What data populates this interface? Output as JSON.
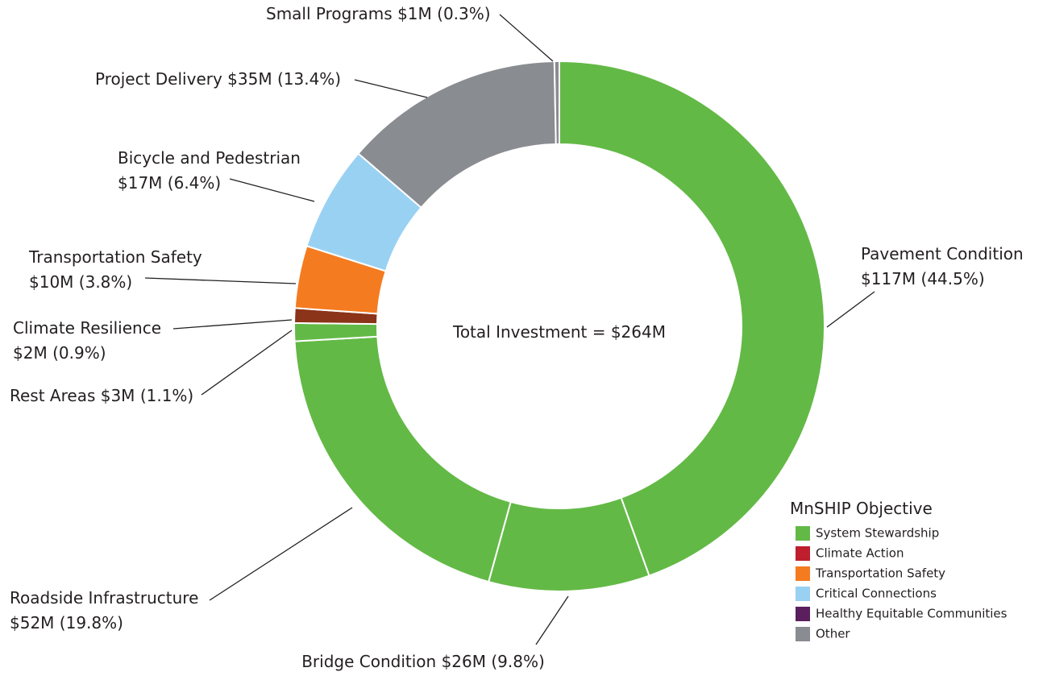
{
  "chart_data": {
    "type": "donut",
    "categories": [
      "Pavement Condition",
      "Bridge Condition",
      "Roadside Infrastructure",
      "Rest Areas",
      "Climate Resilience",
      "Transportation Safety",
      "Bicycle and Pedestrian",
      "Project Delivery",
      "Small Programs"
    ],
    "values": [
      117,
      26,
      52,
      3,
      2,
      10,
      17,
      35,
      1
    ],
    "value_labels": [
      "$117M",
      "$26M",
      "$52M",
      "$3M",
      "$2M",
      "$10M",
      "$17M",
      "$35M",
      "$1M"
    ],
    "percents": [
      44.5,
      9.8,
      19.8,
      1.1,
      0.9,
      3.8,
      6.4,
      13.4,
      0.3
    ],
    "percent_labels": [
      "(44.5%)",
      "(9.8%)",
      "(19.8%)",
      "(1.1%)",
      "(0.9%)",
      "(3.8%)",
      "(6.4%)",
      "(13.4%)",
      "(0.3%)"
    ],
    "colors": [
      "#63b946",
      "#63b946",
      "#63b946",
      "#63b946",
      "#8b3419",
      "#f47b20",
      "#99d1f3",
      "#898c90",
      "#898c90"
    ],
    "center_label": "Total Investment = $264M",
    "legend": {
      "title": "MnSHIP Objective",
      "items": [
        {
          "name": "System Stewardship",
          "color": "#63b946"
        },
        {
          "name": "Climate Action",
          "color": "#be1e2d"
        },
        {
          "name": "Transportation Safety",
          "color": "#f47b20"
        },
        {
          "name": "Critical Connections",
          "color": "#99d1f3"
        },
        {
          "name": "Healthy Equitable Communities",
          "color": "#5b1f5e"
        },
        {
          "name": "Other",
          "color": "#898c90"
        }
      ]
    }
  }
}
